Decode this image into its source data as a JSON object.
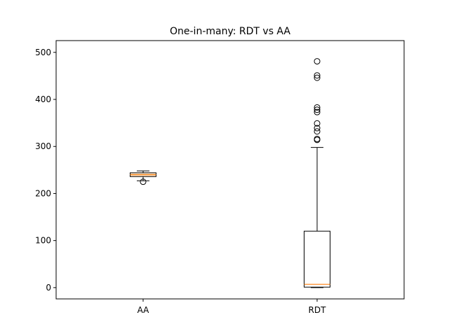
{
  "chart_data": {
    "type": "box",
    "title": "One-in-many: RDT vs AA",
    "xlabel": "",
    "ylabel": "",
    "ylim": [
      -24,
      525
    ],
    "yticks": [
      0,
      100,
      200,
      300,
      400,
      500
    ],
    "categories": [
      "AA",
      "RDT"
    ],
    "boxes": [
      {
        "name": "AA",
        "whisker_low": 227,
        "q1": 236,
        "median": 240,
        "q3": 244,
        "whisker_high": 248,
        "outliers": [
          225
        ]
      },
      {
        "name": "RDT",
        "whisker_low": 0,
        "q1": 1,
        "median": 7,
        "q3": 120,
        "whisker_high": 298,
        "outliers": [
          314,
          316,
          332,
          339,
          349,
          373,
          378,
          383,
          446,
          451,
          481
        ]
      }
    ],
    "grid": false,
    "legend": "none",
    "colors": {
      "box": "#000000",
      "median": "#ff7f0e",
      "aa_fill": "#ffe0c0"
    }
  }
}
